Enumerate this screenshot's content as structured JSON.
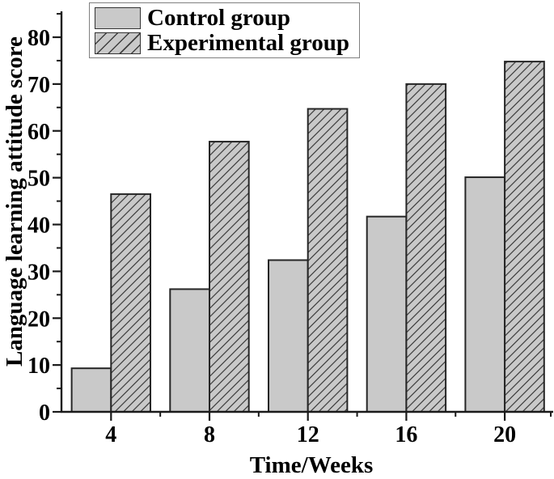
{
  "chart_data": {
    "type": "bar",
    "title": "",
    "xlabel": "Time/Weeks",
    "ylabel": "Language learning attitude score",
    "categories": [
      4,
      8,
      12,
      16,
      20
    ],
    "series": [
      {
        "name": "Control group",
        "hatch": "none",
        "values": [
          9.3,
          26.2,
          32.4,
          41.7,
          50.1
        ]
      },
      {
        "name": "Experimental group",
        "hatch": "diagonal",
        "values": [
          46.5,
          57.7,
          64.7,
          70.0,
          74.8
        ]
      }
    ],
    "ylim": [
      0,
      85
    ],
    "yticks": [
      0,
      10,
      20,
      30,
      40,
      50,
      60,
      70,
      80
    ],
    "y_minor_ticks": [
      5,
      15,
      25,
      35,
      45,
      55,
      65,
      75,
      85
    ],
    "x_minor_ticks": [
      6,
      10,
      14,
      18,
      22
    ],
    "grid": false,
    "legend_position": "top-left",
    "colors": {
      "bar_fill": "#c9c9c9",
      "bar_edge": "#262626",
      "hatch_line": "#404040",
      "axis": "#1a1a1a",
      "text": "#000000",
      "legend_border": "#808080",
      "background": "#ffffff"
    }
  }
}
